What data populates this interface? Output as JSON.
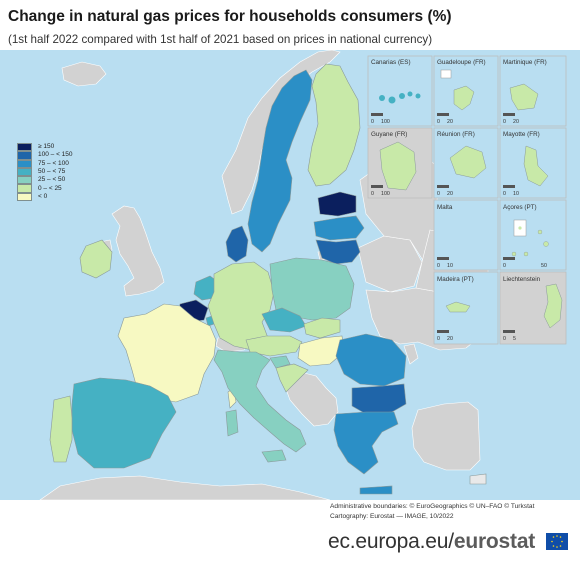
{
  "title": "Change in natural gas prices for households consumers (%)",
  "subtitle": "(1st half 2022 compared with 1st half of 2021 based on prices in national currency)",
  "legend": [
    {
      "label": "≥ 150",
      "color": "#0b1f5e"
    },
    {
      "label": "100 – < 150",
      "color": "#1f65a9"
    },
    {
      "label": "75 – < 100",
      "color": "#2b8fc6"
    },
    {
      "label": "50 – < 75",
      "color": "#45b1c3"
    },
    {
      "label": "25 – < 50",
      "color": "#87d0c1"
    },
    {
      "label": "0 – < 25",
      "color": "#c8e9a8"
    },
    {
      "label": "< 0",
      "color": "#f7f9c2"
    }
  ],
  "colors": {
    "sea": "#b9def1",
    "non_eu": "#d2d2d2",
    "no_data": "#e9e9e9",
    "border": "#8a9a9a"
  },
  "insets": [
    {
      "name": "Canarias (ES)",
      "scale": [
        "0",
        "100"
      ]
    },
    {
      "name": "Guadeloupe (FR)",
      "scale": [
        "0",
        "20"
      ]
    },
    {
      "name": "Martinique (FR)",
      "scale": [
        "0",
        "20"
      ]
    },
    {
      "name": "Guyane (FR)",
      "scale": [
        "0",
        "100"
      ]
    },
    {
      "name": "Réunion (FR)",
      "scale": [
        "0",
        "20"
      ]
    },
    {
      "name": "Mayotte (FR)",
      "scale": [
        "0",
        "10"
      ]
    },
    {
      "name": "Malta",
      "scale": [
        "0",
        "10"
      ]
    },
    {
      "name": "Açores (PT)",
      "scale": [
        "0",
        "50"
      ]
    },
    {
      "name": "Madeira (PT)",
      "scale": [
        "0",
        "20"
      ]
    },
    {
      "name": "Liechtenstein",
      "scale": [
        "0",
        "5"
      ]
    }
  ],
  "credits": {
    "line1": "Administrative boundaries: © EuroGeographics © UN–FAO © Turkstat",
    "line2": "Cartography: Eurostat — IMAGE, 10/2022"
  },
  "brand": {
    "domain": "ec.europa.eu/",
    "name": "eurostat"
  }
}
